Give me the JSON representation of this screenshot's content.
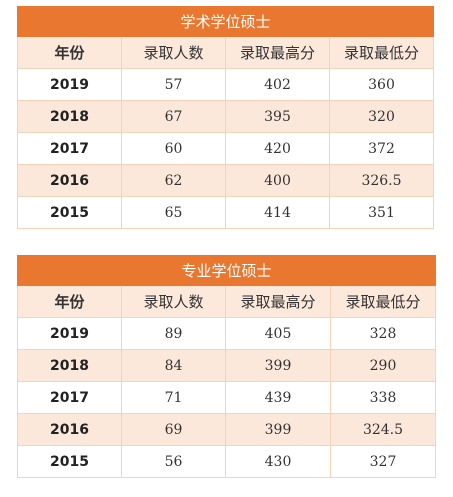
{
  "tables": [
    {
      "title": "学术学位硕士",
      "headers": [
        "年份",
        "录取人数",
        "录取最高分",
        "录取最低分"
      ],
      "rows": [
        [
          "2019",
          "57",
          "402",
          "360"
        ],
        [
          "2018",
          "67",
          "395",
          "320"
        ],
        [
          "2017",
          "60",
          "420",
          "372"
        ],
        [
          "2016",
          "62",
          "400",
          "326.5"
        ],
        [
          "2015",
          "65",
          "414",
          "351"
        ]
      ]
    },
    {
      "title": "专业学位硕士",
      "headers": [
        "年份",
        "录取人数",
        "录取最高分",
        "录取最低分"
      ],
      "rows": [
        [
          "2019",
          "89",
          "405",
          "328"
        ],
        [
          "2018",
          "84",
          "399",
          "290"
        ],
        [
          "2017",
          "71",
          "439",
          "338"
        ],
        [
          "2016",
          "69",
          "399",
          "324.5"
        ],
        [
          "2015",
          "56",
          "430",
          "327"
        ]
      ]
    }
  ],
  "colors": {
    "title_bg": "#e9772f",
    "header_bg": "#fce9dc",
    "alt_row_bg": "#fbe8da",
    "border": "#f5d2b8"
  }
}
